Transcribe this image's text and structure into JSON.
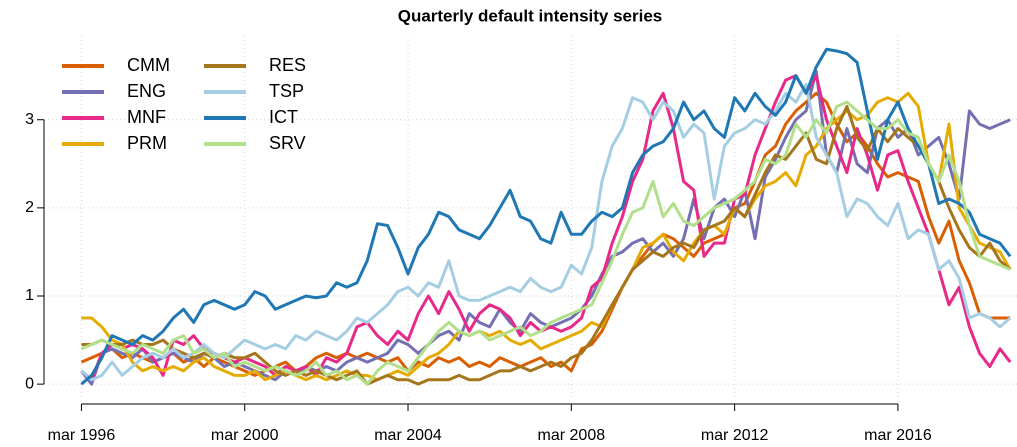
{
  "chart_data": {
    "type": "line",
    "title": "Quarterly default intensity series",
    "grid": true,
    "legend": "top-left",
    "x": [
      "1996-03",
      "1996-06",
      "1996-09",
      "1996-12",
      "1997-03",
      "1997-06",
      "1997-09",
      "1997-12",
      "1998-03",
      "1998-06",
      "1998-09",
      "1998-12",
      "1999-03",
      "1999-06",
      "1999-09",
      "1999-12",
      "2000-03",
      "2000-06",
      "2000-09",
      "2000-12",
      "2001-03",
      "2001-06",
      "2001-09",
      "2001-12",
      "2002-03",
      "2002-06",
      "2002-09",
      "2002-12",
      "2003-03",
      "2003-06",
      "2003-09",
      "2003-12",
      "2004-03",
      "2004-06",
      "2004-09",
      "2004-12",
      "2005-03",
      "2005-06",
      "2005-09",
      "2005-12",
      "2006-03",
      "2006-06",
      "2006-09",
      "2006-12",
      "2007-03",
      "2007-06",
      "2007-09",
      "2007-12",
      "2008-03",
      "2008-06",
      "2008-09",
      "2008-12",
      "2009-03",
      "2009-06",
      "2009-09",
      "2009-12",
      "2010-03",
      "2010-06",
      "2010-09",
      "2010-12",
      "2011-03",
      "2011-06",
      "2011-09",
      "2011-12",
      "2012-03",
      "2012-06",
      "2012-09",
      "2012-12",
      "2013-03",
      "2013-06",
      "2013-09",
      "2013-12",
      "2014-03",
      "2014-06",
      "2014-09",
      "2014-12",
      "2015-03",
      "2015-06",
      "2015-09",
      "2015-12",
      "2016-03",
      "2016-06",
      "2016-09",
      "2016-12",
      "2017-03",
      "2017-06",
      "2017-09",
      "2017-12",
      "2018-03",
      "2018-06",
      "2018-09",
      "2018-12"
    ],
    "xlim": [
      "1995-04",
      "2019-02"
    ],
    "xticks": [
      {
        "value": "1996-03",
        "label": "mar 1996"
      },
      {
        "value": "2000-03",
        "label": "mar 2000"
      },
      {
        "value": "2004-03",
        "label": "mar 2004"
      },
      {
        "value": "2008-03",
        "label": "mar 2008"
      },
      {
        "value": "2012-03",
        "label": "mar 2012"
      },
      {
        "value": "2016-03",
        "label": "mar 2016"
      }
    ],
    "ylim": [
      -0.18,
      3.95
    ],
    "yticks": [
      0,
      1,
      2,
      3
    ],
    "series": [
      {
        "name": "CMM",
        "color": "#d95f02",
        "values": [
          0.25,
          0.3,
          0.35,
          0.4,
          0.3,
          0.35,
          0.3,
          0.25,
          0.3,
          0.35,
          0.25,
          0.3,
          0.2,
          0.3,
          0.25,
          0.2,
          0.15,
          0.1,
          0.15,
          0.2,
          0.25,
          0.15,
          0.2,
          0.3,
          0.35,
          0.3,
          0.35,
          0.3,
          0.35,
          0.3,
          0.25,
          0.3,
          0.15,
          0.25,
          0.2,
          0.3,
          0.25,
          0.3,
          0.2,
          0.25,
          0.2,
          0.3,
          0.25,
          0.2,
          0.25,
          0.3,
          0.2,
          0.25,
          0.15,
          0.4,
          0.45,
          0.6,
          0.85,
          1.1,
          1.3,
          1.45,
          1.6,
          1.7,
          1.65,
          1.55,
          1.45,
          1.6,
          1.65,
          1.7,
          2.0,
          2.05,
          2.3,
          2.6,
          2.7,
          2.95,
          3.1,
          3.2,
          3.3,
          3.2,
          2.95,
          2.75,
          2.85,
          2.7,
          2.5,
          2.35,
          2.4,
          2.35,
          2.3,
          1.9,
          1.6,
          1.85,
          1.4,
          1.15,
          0.8,
          0.75,
          0.75,
          0.75
        ]
      },
      {
        "name": "ENG",
        "color": "#7570b3",
        "values": [
          0.15,
          0.0,
          0.35,
          0.4,
          0.35,
          0.3,
          0.4,
          0.25,
          0.3,
          0.35,
          0.3,
          0.25,
          0.35,
          0.3,
          0.2,
          0.25,
          0.2,
          0.15,
          0.1,
          0.05,
          0.15,
          0.1,
          0.2,
          0.15,
          0.2,
          0.15,
          0.25,
          0.3,
          0.25,
          0.3,
          0.35,
          0.5,
          0.45,
          0.35,
          0.45,
          0.55,
          0.6,
          0.5,
          0.8,
          0.7,
          0.65,
          0.85,
          0.7,
          0.6,
          0.8,
          0.7,
          0.65,
          0.7,
          0.75,
          0.85,
          1.0,
          1.25,
          1.45,
          1.5,
          1.6,
          1.65,
          1.5,
          1.6,
          1.45,
          1.65,
          2.1,
          1.65,
          2.0,
          2.1,
          1.9,
          2.2,
          1.65,
          2.35,
          2.55,
          2.8,
          3.0,
          3.1,
          3.55,
          2.6,
          2.4,
          2.9,
          2.5,
          2.4,
          2.9,
          3.0,
          2.8,
          2.9,
          2.6,
          2.7,
          2.8,
          2.5,
          2.1,
          3.1,
          2.95,
          2.9,
          2.95,
          3.0
        ]
      },
      {
        "name": "MNF",
        "color": "#e7298a",
        "values": [
          0.15,
          0.05,
          0.35,
          0.45,
          0.4,
          0.45,
          0.4,
          0.3,
          0.1,
          0.5,
          0.45,
          0.55,
          0.4,
          0.35,
          0.3,
          0.25,
          0.3,
          0.25,
          0.2,
          0.1,
          0.2,
          0.15,
          0.2,
          0.1,
          0.3,
          0.25,
          0.35,
          0.65,
          0.7,
          0.55,
          0.45,
          0.6,
          0.5,
          0.8,
          1.0,
          0.8,
          1.05,
          0.85,
          0.6,
          0.8,
          0.9,
          0.85,
          0.75,
          0.55,
          0.7,
          0.6,
          0.65,
          0.6,
          0.65,
          0.75,
          1.1,
          1.2,
          1.6,
          1.9,
          2.3,
          2.55,
          3.1,
          3.3,
          2.9,
          2.3,
          2.2,
          1.45,
          1.6,
          1.6,
          2.1,
          2.15,
          2.6,
          2.9,
          3.2,
          3.45,
          3.5,
          3.3,
          3.5,
          3.0,
          2.7,
          2.4,
          2.9,
          2.6,
          2.2,
          2.6,
          2.65,
          2.3,
          2.0,
          1.7,
          1.3,
          0.9,
          1.1,
          0.65,
          0.35,
          0.2,
          0.4,
          0.25
        ]
      },
      {
        "name": "PRM",
        "color": "#e6ab02",
        "values": [
          0.75,
          0.75,
          0.65,
          0.5,
          0.45,
          0.25,
          0.15,
          0.2,
          0.15,
          0.2,
          0.15,
          0.25,
          0.3,
          0.2,
          0.15,
          0.1,
          0.1,
          0.15,
          0.05,
          0.1,
          0.15,
          0.1,
          0.05,
          0.1,
          0.05,
          0.1,
          0.15,
          0.1,
          0.1,
          0.05,
          0.1,
          0.15,
          0.1,
          0.2,
          0.3,
          0.35,
          0.45,
          0.6,
          0.55,
          0.6,
          0.55,
          0.6,
          0.5,
          0.45,
          0.5,
          0.4,
          0.45,
          0.5,
          0.55,
          0.6,
          0.7,
          0.65,
          0.9,
          1.1,
          1.3,
          1.55,
          1.6,
          1.7,
          1.5,
          1.4,
          1.6,
          1.75,
          1.8,
          1.7,
          2.0,
          1.9,
          2.1,
          2.25,
          2.3,
          2.4,
          2.25,
          2.6,
          2.7,
          2.9,
          3.0,
          3.1,
          3.0,
          3.05,
          3.2,
          3.25,
          3.2,
          3.3,
          3.15,
          2.5,
          2.3,
          2.95,
          2.0,
          1.8,
          1.6,
          1.55,
          1.5,
          1.3
        ]
      },
      {
        "name": "RES",
        "color": "#a6761d",
        "values": [
          0.45,
          0.45,
          0.5,
          0.45,
          0.45,
          0.5,
          0.45,
          0.45,
          0.5,
          0.4,
          0.35,
          0.3,
          0.35,
          0.3,
          0.35,
          0.3,
          0.3,
          0.35,
          0.25,
          0.15,
          0.1,
          0.15,
          0.1,
          0.15,
          0.1,
          0.05,
          0.1,
          0.15,
          0.0,
          0.05,
          0.1,
          0.05,
          0.05,
          0.0,
          0.05,
          0.05,
          0.05,
          0.1,
          0.05,
          0.05,
          0.1,
          0.15,
          0.15,
          0.2,
          0.15,
          0.2,
          0.25,
          0.2,
          0.3,
          0.35,
          0.5,
          0.7,
          0.9,
          1.1,
          1.3,
          1.4,
          1.5,
          1.45,
          1.55,
          1.6,
          1.55,
          1.75,
          1.8,
          1.85,
          2.0,
          1.9,
          2.15,
          2.4,
          2.6,
          2.55,
          2.7,
          2.85,
          2.55,
          2.5,
          2.9,
          3.15,
          2.8,
          2.65,
          2.9,
          2.75,
          2.9,
          2.8,
          2.7,
          2.5,
          2.3,
          2.0,
          1.75,
          1.55,
          1.45,
          1.6,
          1.4,
          1.3
        ]
      },
      {
        "name": "TSP",
        "color": "#a6cee3",
        "values": [
          0.15,
          0.05,
          0.1,
          0.25,
          0.1,
          0.2,
          0.3,
          0.35,
          0.3,
          0.4,
          0.3,
          0.35,
          0.45,
          0.35,
          0.3,
          0.4,
          0.5,
          0.45,
          0.4,
          0.45,
          0.4,
          0.55,
          0.5,
          0.6,
          0.55,
          0.5,
          0.6,
          0.75,
          0.7,
          0.8,
          0.9,
          1.05,
          1.1,
          1.0,
          1.15,
          1.1,
          1.4,
          1.0,
          0.95,
          0.95,
          1.0,
          1.05,
          1.1,
          1.05,
          1.2,
          1.1,
          1.05,
          1.1,
          1.35,
          1.25,
          1.55,
          2.3,
          2.7,
          2.9,
          3.25,
          3.2,
          3.0,
          3.2,
          3.1,
          2.8,
          2.95,
          2.85,
          2.1,
          2.7,
          2.85,
          2.9,
          3.0,
          2.95,
          3.1,
          3.3,
          3.2,
          3.4,
          2.8,
          2.6,
          2.4,
          1.9,
          2.1,
          2.05,
          1.9,
          1.8,
          2.05,
          1.65,
          1.75,
          1.7,
          1.3,
          1.4,
          1.2,
          0.75,
          0.8,
          0.75,
          0.65,
          0.75
        ]
      },
      {
        "name": "ICT",
        "color": "#1f78b4",
        "values": [
          0.0,
          0.1,
          0.3,
          0.55,
          0.5,
          0.45,
          0.55,
          0.5,
          0.6,
          0.75,
          0.85,
          0.7,
          0.9,
          0.95,
          0.9,
          0.85,
          0.9,
          1.05,
          1.0,
          0.85,
          0.9,
          0.95,
          1.0,
          0.98,
          1.0,
          1.15,
          1.1,
          1.15,
          1.4,
          1.82,
          1.8,
          1.55,
          1.25,
          1.55,
          1.7,
          1.95,
          1.9,
          1.75,
          1.7,
          1.65,
          1.8,
          2.0,
          2.2,
          1.9,
          1.85,
          1.65,
          1.6,
          1.95,
          1.7,
          1.7,
          1.85,
          1.95,
          1.9,
          2.0,
          2.4,
          2.6,
          2.7,
          2.75,
          2.9,
          3.2,
          3.0,
          3.1,
          2.9,
          2.8,
          3.25,
          3.1,
          3.3,
          3.15,
          3.05,
          3.2,
          3.5,
          3.3,
          3.6,
          3.8,
          3.78,
          3.75,
          3.65,
          3.1,
          2.55,
          3.0,
          3.2,
          2.9,
          2.7,
          2.5,
          2.05,
          2.1,
          2.05,
          1.95,
          1.7,
          1.65,
          1.6,
          1.45
        ]
      },
      {
        "name": "SRV",
        "color": "#b2df8a",
        "values": [
          0.4,
          0.45,
          0.5,
          0.45,
          0.4,
          0.35,
          0.45,
          0.4,
          0.35,
          0.5,
          0.55,
          0.35,
          0.4,
          0.3,
          0.35,
          0.2,
          0.25,
          0.2,
          0.15,
          0.2,
          0.15,
          0.1,
          0.15,
          0.25,
          0.1,
          0.15,
          0.05,
          0.1,
          0.0,
          0.15,
          0.25,
          0.2,
          0.15,
          0.3,
          0.45,
          0.6,
          0.7,
          0.6,
          0.55,
          0.6,
          0.5,
          0.55,
          0.6,
          0.65,
          0.55,
          0.6,
          0.7,
          0.75,
          0.8,
          0.85,
          0.9,
          1.15,
          1.4,
          1.7,
          1.95,
          2.0,
          2.3,
          1.9,
          2.05,
          1.85,
          1.8,
          1.9,
          2.0,
          2.05,
          2.1,
          2.2,
          2.3,
          2.55,
          2.5,
          2.6,
          2.95,
          2.8,
          3.0,
          2.85,
          3.15,
          3.2,
          3.1,
          3.0,
          2.9,
          2.9,
          3.0,
          2.85,
          2.8,
          2.5,
          2.3,
          2.6,
          2.3,
          1.8,
          1.45,
          1.4,
          1.35,
          1.3
        ]
      }
    ]
  }
}
